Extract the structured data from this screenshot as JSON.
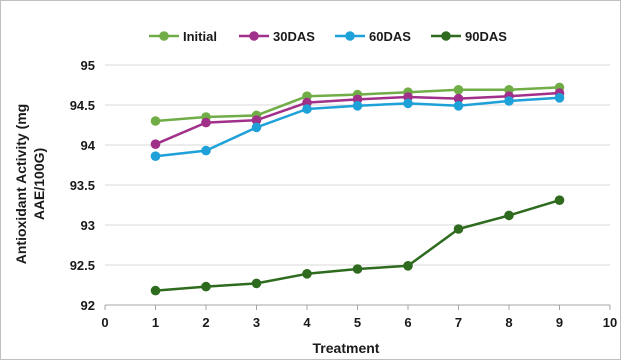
{
  "chart_data": {
    "type": "line",
    "title": "",
    "xlabel": "Treatment",
    "ylabel": "Antioxidant Activity (mg AAE/100G)",
    "ylabel_lines": [
      "Antioxidant Activity (mg",
      "AAE/100G)"
    ],
    "xlim": [
      0,
      10
    ],
    "ylim": [
      92,
      95
    ],
    "x_ticks": [
      "0",
      "1",
      "2",
      "3",
      "4",
      "5",
      "6",
      "7",
      "8",
      "9",
      "10"
    ],
    "y_ticks": [
      "92",
      "92.5",
      "93",
      "93.5",
      "94",
      "94.5",
      "95"
    ],
    "grid": "horizontal",
    "legend_position": "top",
    "x": [
      1,
      2,
      3,
      4,
      5,
      6,
      7,
      8,
      9
    ],
    "series": [
      {
        "name": "Initial",
        "color": "#70ad47",
        "values": [
          94.3,
          94.35,
          94.37,
          94.61,
          94.63,
          94.66,
          94.69,
          94.69,
          94.72
        ]
      },
      {
        "name": "30DAS",
        "color": "#a0308a",
        "values": [
          94.01,
          94.28,
          94.31,
          94.53,
          94.57,
          94.6,
          94.58,
          94.61,
          94.65
        ]
      },
      {
        "name": "60DAS",
        "color": "#1ea0d8",
        "values": [
          93.86,
          93.93,
          94.22,
          94.45,
          94.49,
          94.52,
          94.49,
          94.55,
          94.59
        ]
      },
      {
        "name": "90DAS",
        "color": "#2e6b1e",
        "values": [
          92.18,
          92.23,
          92.27,
          92.39,
          92.45,
          92.49,
          92.95,
          93.12,
          93.31
        ]
      }
    ]
  }
}
